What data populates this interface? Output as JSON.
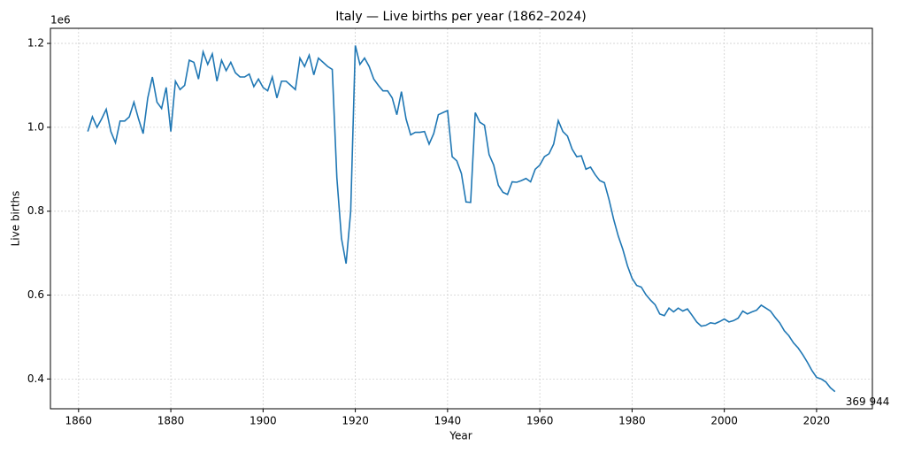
{
  "chart_data": {
    "type": "line",
    "title": "Italy — Live births per year (1862–2024)",
    "x_label": "Year",
    "y_label": "Live births",
    "y_offset_label": "1e6",
    "end_label": "369 944",
    "color": "#1f77b4",
    "grid": true,
    "xlim": [
      1853.9,
      2032.1
    ],
    "xticks": [
      1860,
      1880,
      1900,
      1920,
      1940,
      1960,
      1980,
      2000,
      2020
    ],
    "ylim": [
      329000,
      1236000
    ],
    "yticks": [
      {
        "value": 400000,
        "label": "0.4"
      },
      {
        "value": 600000,
        "label": "0.6"
      },
      {
        "value": 800000,
        "label": "0.8"
      },
      {
        "value": 1000000,
        "label": "1.0"
      },
      {
        "value": 1200000,
        "label": "1.2"
      }
    ],
    "x": [
      1862,
      1863,
      1864,
      1865,
      1866,
      1867,
      1868,
      1869,
      1870,
      1871,
      1872,
      1873,
      1874,
      1875,
      1876,
      1877,
      1878,
      1879,
      1880,
      1881,
      1882,
      1883,
      1884,
      1885,
      1886,
      1887,
      1888,
      1889,
      1890,
      1891,
      1892,
      1893,
      1894,
      1895,
      1896,
      1897,
      1898,
      1899,
      1900,
      1901,
      1902,
      1903,
      1904,
      1905,
      1906,
      1907,
      1908,
      1909,
      1910,
      1911,
      1912,
      1913,
      1914,
      1915,
      1916,
      1917,
      1918,
      1919,
      1920,
      1921,
      1922,
      1923,
      1924,
      1925,
      1926,
      1927,
      1928,
      1929,
      1930,
      1931,
      1932,
      1933,
      1934,
      1935,
      1936,
      1937,
      1938,
      1939,
      1940,
      1941,
      1942,
      1943,
      1944,
      1945,
      1946,
      1947,
      1948,
      1949,
      1950,
      1951,
      1952,
      1953,
      1954,
      1955,
      1956,
      1957,
      1958,
      1959,
      1960,
      1961,
      1962,
      1963,
      1964,
      1965,
      1966,
      1967,
      1968,
      1969,
      1970,
      1971,
      1972,
      1973,
      1974,
      1975,
      1976,
      1977,
      1978,
      1979,
      1980,
      1981,
      1982,
      1983,
      1984,
      1985,
      1986,
      1987,
      1988,
      1989,
      1990,
      1991,
      1992,
      1993,
      1994,
      1995,
      1996,
      1997,
      1998,
      1999,
      2000,
      2001,
      2002,
      2003,
      2004,
      2005,
      2006,
      2007,
      2008,
      2009,
      2010,
      2011,
      2012,
      2013,
      2014,
      2015,
      2016,
      2017,
      2018,
      2019,
      2020,
      2021,
      2022,
      2023,
      2024
    ],
    "values": [
      990000,
      1025000,
      1000000,
      1020000,
      1043000,
      990000,
      963000,
      1015000,
      1015000,
      1025000,
      1060000,
      1020000,
      985000,
      1070000,
      1120000,
      1060000,
      1045000,
      1095000,
      990000,
      1110000,
      1090000,
      1100000,
      1160000,
      1155000,
      1115000,
      1180000,
      1150000,
      1175000,
      1110000,
      1160000,
      1135000,
      1155000,
      1130000,
      1120000,
      1120000,
      1127000,
      1097000,
      1115000,
      1095000,
      1087000,
      1120000,
      1070000,
      1110000,
      1110000,
      1100000,
      1090000,
      1165000,
      1145000,
      1172000,
      1125000,
      1165000,
      1155000,
      1145000,
      1138000,
      880000,
      735000,
      675000,
      800000,
      1195000,
      1150000,
      1165000,
      1145000,
      1115000,
      1100000,
      1087000,
      1087000,
      1070000,
      1030000,
      1085000,
      1020000,
      982000,
      988000,
      988000,
      990000,
      960000,
      985000,
      1030000,
      1035000,
      1040000,
      930000,
      920000,
      890000,
      822000,
      821000,
      1035000,
      1012000,
      1005000,
      935000,
      910000,
      862000,
      845000,
      840000,
      870000,
      869000,
      873000,
      878000,
      870000,
      900000,
      910000,
      930000,
      937000,
      960000,
      1016000,
      990000,
      979000,
      948000,
      930000,
      932000,
      900000,
      905000,
      887000,
      873000,
      868000,
      828000,
      781000,
      741000,
      709000,
      670000,
      640000,
      623000,
      619000,
      601000,
      588000,
      577000,
      555000,
      551000,
      569000,
      560000,
      569000,
      562000,
      567000,
      552000,
      536000,
      526000,
      528000,
      534000,
      532000,
      537000,
      543000,
      536000,
      539000,
      545000,
      562000,
      555000,
      560000,
      564000,
      576000,
      569000,
      562000,
      547000,
      534000,
      515000,
      503000,
      486000,
      474000,
      458000,
      440000,
      420000,
      404000,
      400000,
      393000,
      379000,
      369944
    ]
  }
}
